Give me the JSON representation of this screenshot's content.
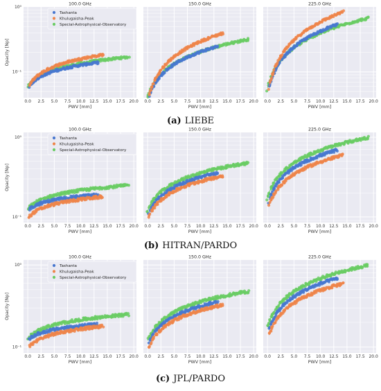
{
  "figure": {
    "captions": [
      {
        "letter": "(a)",
        "name": "LIEBE"
      },
      {
        "letter": "(b)",
        "name": "HITRAN/PARDO"
      },
      {
        "letter": "(c)",
        "name": "JPL/PARDO"
      }
    ],
    "panel_titles": [
      "100.0 GHz",
      "150.0 GHz",
      "225.0 GHz"
    ],
    "xlabel": "PWV [mm]",
    "ylabel": "Opacity [Np]",
    "x_tick_labels": [
      "0.0",
      "2.5",
      "5.0",
      "7.5",
      "10.0",
      "12.5",
      "15.0",
      "17.5",
      "20.0"
    ],
    "y_tick_labels": {
      "one": "10⁰",
      "tenth": "10⁻¹"
    },
    "legend": [
      "Tashanta",
      "Khulugaisha-Peak",
      "Special-Astrophysical-Observatory"
    ],
    "colors": {
      "Tashanta": "#4878d0",
      "Khulugaisha-Peak": "#ee854a",
      "Special-Astrophysical-Observatory": "#6acc64",
      "panel_bg": "#eaeaf2",
      "grid": "#ffffff"
    }
  },
  "chart_data": [
    {
      "type": "scatter",
      "model": "LIEBE",
      "yscale": "log",
      "xlim": [
        -0.8,
        20.5
      ],
      "ylim": [
        0.04,
        1.0
      ],
      "panels": [
        {
          "title": "100.0 GHz",
          "series": [
            {
              "name": "Tashanta",
              "x_range": [
                0.3,
                13.2
              ],
              "y_start": 0.055,
              "y_end": 0.14
            },
            {
              "name": "Khulugaisha-Peak",
              "x_range": [
                0.3,
                14.2
              ],
              "y_start": 0.055,
              "y_end": 0.185
            },
            {
              "name": "Special-Astrophysical-Observatory",
              "x_range": [
                0.0,
                19.0
              ],
              "y_start": 0.053,
              "y_end": 0.17
            }
          ]
        },
        {
          "title": "150.0 GHz",
          "series": [
            {
              "name": "Tashanta",
              "x_range": [
                0.3,
                13.2
              ],
              "y_start": 0.035,
              "y_end": 0.25
            },
            {
              "name": "Khulugaisha-Peak",
              "x_range": [
                0.3,
                14.2
              ],
              "y_start": 0.035,
              "y_end": 0.4
            },
            {
              "name": "Special-Astrophysical-Observatory",
              "x_range": [
                0.0,
                19.0
              ],
              "y_start": 0.034,
              "y_end": 0.32
            }
          ]
        },
        {
          "title": "225.0 GHz",
          "series": [
            {
              "name": "Tashanta",
              "x_range": [
                0.3,
                13.2
              ],
              "y_start": 0.045,
              "y_end": 0.55
            },
            {
              "name": "Khulugaisha-Peak",
              "x_range": [
                0.3,
                14.2
              ],
              "y_start": 0.045,
              "y_end": 0.85
            },
            {
              "name": "Special-Astrophysical-Observatory",
              "x_range": [
                0.0,
                19.0
              ],
              "y_start": 0.045,
              "y_end": 0.68
            }
          ]
        }
      ]
    },
    {
      "type": "scatter",
      "model": "HITRAN/PARDO",
      "yscale": "log",
      "xlim": [
        -0.8,
        20.5
      ],
      "ylim": [
        0.085,
        1.15
      ],
      "panels": [
        {
          "title": "100.0 GHz",
          "series": [
            {
              "name": "Tashanta",
              "x_range": [
                0.3,
                13.2
              ],
              "y_start": 0.12,
              "y_end": 0.19
            },
            {
              "name": "Khulugaisha-Peak",
              "x_range": [
                0.3,
                14.2
              ],
              "y_start": 0.095,
              "y_end": 0.18
            },
            {
              "name": "Special-Astrophysical-Observatory",
              "x_range": [
                0.0,
                19.0
              ],
              "y_start": 0.118,
              "y_end": 0.25
            }
          ]
        },
        {
          "title": "150.0 GHz",
          "series": [
            {
              "name": "Tashanta",
              "x_range": [
                0.3,
                13.2
              ],
              "y_start": 0.1,
              "y_end": 0.36
            },
            {
              "name": "Khulugaisha-Peak",
              "x_range": [
                0.3,
                14.2
              ],
              "y_start": 0.09,
              "y_end": 0.33
            },
            {
              "name": "Special-Astrophysical-Observatory",
              "x_range": [
                0.0,
                19.0
              ],
              "y_start": 0.105,
              "y_end": 0.48
            }
          ]
        },
        {
          "title": "225.0 GHz",
          "series": [
            {
              "name": "Tashanta",
              "x_range": [
                0.3,
                13.2
              ],
              "y_start": 0.14,
              "y_end": 0.7
            },
            {
              "name": "Khulugaisha-Peak",
              "x_range": [
                0.3,
                14.2
              ],
              "y_start": 0.12,
              "y_end": 0.6
            },
            {
              "name": "Special-Astrophysical-Observatory",
              "x_range": [
                0.0,
                19.0
              ],
              "y_start": 0.15,
              "y_end": 1.0
            }
          ]
        }
      ]
    },
    {
      "type": "scatter",
      "model": "JPL/PARDO",
      "yscale": "log",
      "xlim": [
        -0.8,
        20.5
      ],
      "ylim": [
        0.085,
        1.15
      ],
      "panels": [
        {
          "title": "100.0 GHz",
          "series": [
            {
              "name": "Tashanta",
              "x_range": [
                0.3,
                13.2
              ],
              "y_start": 0.12,
              "y_end": 0.19
            },
            {
              "name": "Khulugaisha-Peak",
              "x_range": [
                0.3,
                14.2
              ],
              "y_start": 0.095,
              "y_end": 0.18
            },
            {
              "name": "Special-Astrophysical-Observatory",
              "x_range": [
                0.0,
                19.0
              ],
              "y_start": 0.118,
              "y_end": 0.25
            }
          ]
        },
        {
          "title": "150.0 GHz",
          "series": [
            {
              "name": "Tashanta",
              "x_range": [
                0.3,
                13.2
              ],
              "y_start": 0.1,
              "y_end": 0.36
            },
            {
              "name": "Khulugaisha-Peak",
              "x_range": [
                0.3,
                14.2
              ],
              "y_start": 0.09,
              "y_end": 0.33
            },
            {
              "name": "Special-Astrophysical-Observatory",
              "x_range": [
                0.0,
                19.0
              ],
              "y_start": 0.105,
              "y_end": 0.48
            }
          ]
        },
        {
          "title": "225.0 GHz",
          "series": [
            {
              "name": "Tashanta",
              "x_range": [
                0.3,
                13.2
              ],
              "y_start": 0.14,
              "y_end": 0.7
            },
            {
              "name": "Khulugaisha-Peak",
              "x_range": [
                0.3,
                14.2
              ],
              "y_start": 0.12,
              "y_end": 0.6
            },
            {
              "name": "Special-Astrophysical-Observatory",
              "x_range": [
                0.0,
                19.0
              ],
              "y_start": 0.15,
              "y_end": 1.0
            }
          ]
        }
      ]
    }
  ]
}
